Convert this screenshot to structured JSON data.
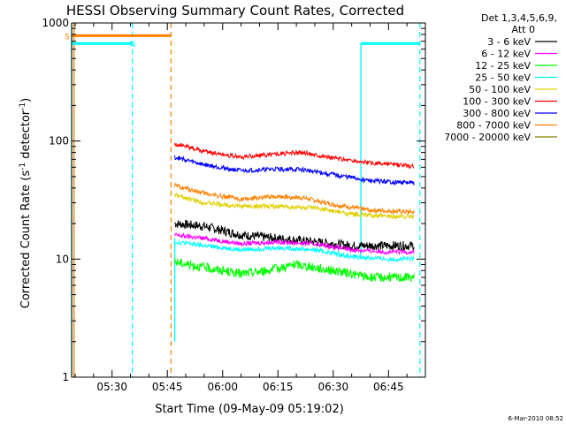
{
  "chart_data": {
    "type": "line",
    "title": "HESSI Observing Summary Count Rates, Corrected",
    "xlabel": "Start Time (09-May-09 05:19:02)",
    "ylabel": "Corrected Count Rate (s",
    "ylabel_sup1": "-1",
    "ylabel_mid": " detector",
    "ylabel_sup2": "-1",
    "ylabel_end": ")",
    "y_scale": "log",
    "ylim": [
      1,
      1000
    ],
    "xlim": [
      "05:19:02",
      "06:55:00"
    ],
    "x_ticks": [
      "05:30",
      "05:45",
      "06:00",
      "06:15",
      "06:30",
      "06:45"
    ],
    "y_ticks": [
      "1",
      "10",
      "100",
      "1000"
    ],
    "grid": false,
    "legend_header": [
      "Det 1,3,4,5,6,9,",
      "Att 0"
    ],
    "legend_position": "right",
    "series": [
      {
        "name": "3 - 6 keV",
        "color": "#000000",
        "points": [
          [
            "05:47",
            20
          ],
          [
            "05:55",
            19
          ],
          [
            "06:05",
            16
          ],
          [
            "06:15",
            15
          ],
          [
            "06:25",
            14
          ],
          [
            "06:35",
            13
          ],
          [
            "06:45",
            13
          ],
          [
            "06:52",
            13
          ]
        ]
      },
      {
        "name": "6 - 12 keV",
        "color": "#ff00ff",
        "points": [
          [
            "05:47",
            16
          ],
          [
            "05:55",
            15
          ],
          [
            "06:05",
            13.5
          ],
          [
            "06:15",
            14
          ],
          [
            "06:25",
            13.5
          ],
          [
            "06:35",
            12
          ],
          [
            "06:45",
            11.5
          ],
          [
            "06:52",
            11.5
          ]
        ]
      },
      {
        "name": "12 - 25 keV",
        "color": "#00ff00",
        "points": [
          [
            "05:47",
            9.5
          ],
          [
            "05:55",
            8.5
          ],
          [
            "06:05",
            7.5
          ],
          [
            "06:12",
            8
          ],
          [
            "06:20",
            9
          ],
          [
            "06:30",
            8
          ],
          [
            "06:40",
            7
          ],
          [
            "06:52",
            7
          ]
        ]
      },
      {
        "name": "25 - 50 keV",
        "color": "#00ffff",
        "points": [
          [
            "05:47",
            14
          ],
          [
            "05:55",
            13
          ],
          [
            "06:05",
            12
          ],
          [
            "06:15",
            12.5
          ],
          [
            "06:25",
            12
          ],
          [
            "06:35",
            10.5
          ],
          [
            "06:45",
            10
          ],
          [
            "06:52",
            10
          ]
        ]
      },
      {
        "name": "50 - 100 keV",
        "color": "#e0d000",
        "points": [
          [
            "05:47",
            35
          ],
          [
            "05:55",
            30
          ],
          [
            "06:05",
            28
          ],
          [
            "06:15",
            28
          ],
          [
            "06:25",
            27
          ],
          [
            "06:35",
            24
          ],
          [
            "06:45",
            23
          ],
          [
            "06:52",
            23
          ]
        ]
      },
      {
        "name": "100 - 300 keV",
        "color": "#ff0000",
        "points": [
          [
            "05:47",
            95
          ],
          [
            "05:55",
            82
          ],
          [
            "06:05",
            73
          ],
          [
            "06:15",
            78
          ],
          [
            "06:22",
            80
          ],
          [
            "06:30",
            72
          ],
          [
            "06:40",
            65
          ],
          [
            "06:52",
            61
          ]
        ]
      },
      {
        "name": "300 - 800 keV",
        "color": "#0000ff",
        "points": [
          [
            "05:47",
            73
          ],
          [
            "05:55",
            63
          ],
          [
            "06:05",
            56
          ],
          [
            "06:15",
            58
          ],
          [
            "06:22",
            57
          ],
          [
            "06:30",
            52
          ],
          [
            "06:40",
            46
          ],
          [
            "06:52",
            44
          ]
        ]
      },
      {
        "name": "800 - 7000 keV",
        "color": "#ff8000",
        "points": [
          [
            "05:47",
            42
          ],
          [
            "05:55",
            36
          ],
          [
            "06:05",
            32
          ],
          [
            "06:15",
            34
          ],
          [
            "06:22",
            33
          ],
          [
            "06:30",
            29
          ],
          [
            "06:40",
            26
          ],
          [
            "06:52",
            25
          ]
        ]
      },
      {
        "name": "7000 - 20000 keV",
        "color": "#808000",
        "points": []
      }
    ],
    "annotations": [
      {
        "label": "S",
        "color": "#ff8000",
        "level": 780,
        "from": "05:19:02",
        "to": "05:46:00"
      },
      {
        "label": "N",
        "color": "#00ffff",
        "level": 670,
        "from": "05:19:02",
        "to": "05:35:30"
      },
      {
        "label": "",
        "color": "#00ffff",
        "level": 670,
        "from": "06:37:30",
        "to": "06:53:30"
      }
    ],
    "dashed_markers": [
      {
        "time": "05:35:30",
        "color": "#00ffff"
      },
      {
        "time": "05:46:00",
        "color": "#ff8000"
      },
      {
        "time": "06:53:30",
        "color": "#00ffff"
      }
    ],
    "solid_markers": [
      {
        "time": "05:19:02",
        "color": "#00ffff"
      },
      {
        "time": "05:19:40",
        "color": "#ff8000"
      },
      {
        "time": "05:47:00",
        "color": "#00ffff",
        "from": 2,
        "to": 15
      },
      {
        "time": "06:37:30",
        "color": "#00ffff",
        "from": 10,
        "to": 670
      }
    ]
  },
  "footer": {
    "timestamp": "6-Mar-2010 08:52"
  }
}
